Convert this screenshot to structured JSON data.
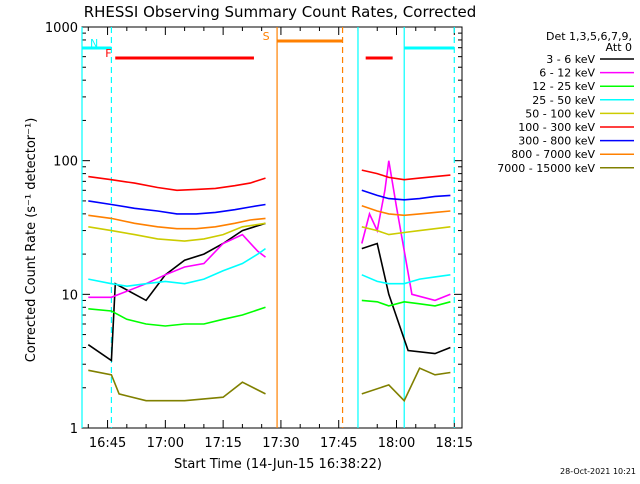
{
  "chart_data": {
    "type": "line",
    "title": "RHESSI Observing Summary Count Rates, Corrected",
    "xlabel": "Start Time (14-Jun-15 16:38:22)",
    "ylabel": "Corrected Count Rate (s⁻¹ detector⁻¹)",
    "y_scale": "log",
    "ylim": [
      1,
      1000
    ],
    "xlim": [
      "16:38:22",
      "18:17:00"
    ],
    "x_ticks": [
      "16:45",
      "17:00",
      "17:15",
      "17:30",
      "17:45",
      "18:00",
      "18:15"
    ],
    "y_ticks": [
      "1",
      "10",
      "100",
      "1000"
    ],
    "timestamp": "28-Oct-2021 10:21",
    "legend": {
      "placement": "right",
      "header": [
        "Det 1,3,5,6,7,9,",
        "Att 0"
      ]
    },
    "series": [
      {
        "name": "3 - 6 keV",
        "color": "#000000",
        "points": [
          [
            "16:40",
            4.2
          ],
          [
            "16:46",
            3.2
          ],
          [
            "16:47",
            12
          ],
          [
            "16:55",
            9
          ],
          [
            "17:00",
            14
          ],
          [
            "17:05",
            18
          ],
          [
            "17:10",
            20
          ],
          [
            "17:15",
            24
          ],
          [
            "17:20",
            30
          ],
          [
            "17:26",
            34
          ],
          [
            "17:51",
            22
          ],
          [
            "17:55",
            24
          ],
          [
            "17:58",
            10
          ],
          [
            "18:03",
            3.8
          ],
          [
            "18:10",
            3.6
          ],
          [
            "18:14",
            4
          ]
        ]
      },
      {
        "name": "6 - 12 keV",
        "color": "#ff00ff",
        "points": [
          [
            "16:40",
            9.5
          ],
          [
            "16:46",
            9.5
          ],
          [
            "16:48",
            10
          ],
          [
            "16:55",
            12
          ],
          [
            "17:00",
            14
          ],
          [
            "17:05",
            16
          ],
          [
            "17:10",
            17
          ],
          [
            "17:15",
            24
          ],
          [
            "17:20",
            28
          ],
          [
            "17:24",
            21
          ],
          [
            "17:26",
            19
          ],
          [
            "17:51",
            24
          ],
          [
            "17:53",
            40
          ],
          [
            "17:55",
            30
          ],
          [
            "17:57",
            60
          ],
          [
            "17:58",
            100
          ],
          [
            "18:00",
            45
          ],
          [
            "18:04",
            10
          ],
          [
            "18:10",
            9
          ],
          [
            "18:14",
            10
          ]
        ]
      },
      {
        "name": "12 - 25 keV",
        "color": "#00ff00",
        "points": [
          [
            "16:40",
            7.8
          ],
          [
            "16:46",
            7.5
          ],
          [
            "16:50",
            6.5
          ],
          [
            "16:55",
            6
          ],
          [
            "17:00",
            5.8
          ],
          [
            "17:05",
            6
          ],
          [
            "17:10",
            6
          ],
          [
            "17:15",
            6.5
          ],
          [
            "17:20",
            7
          ],
          [
            "17:26",
            8
          ],
          [
            "17:51",
            9
          ],
          [
            "17:55",
            8.8
          ],
          [
            "17:58",
            8.2
          ],
          [
            "18:02",
            8.8
          ],
          [
            "18:06",
            8.5
          ],
          [
            "18:10",
            8.2
          ],
          [
            "18:14",
            8.8
          ]
        ]
      },
      {
        "name": "25 - 50 keV",
        "color": "#00ffff",
        "points": [
          [
            "16:40",
            13
          ],
          [
            "16:46",
            12
          ],
          [
            "16:50",
            11.5
          ],
          [
            "16:55",
            12
          ],
          [
            "17:00",
            12.5
          ],
          [
            "17:05",
            12
          ],
          [
            "17:10",
            13
          ],
          [
            "17:15",
            15
          ],
          [
            "17:20",
            17
          ],
          [
            "17:24",
            20
          ],
          [
            "17:26",
            22
          ],
          [
            "17:51",
            14
          ],
          [
            "17:55",
            12.5
          ],
          [
            "17:58",
            12
          ],
          [
            "18:02",
            12
          ],
          [
            "18:06",
            13
          ],
          [
            "18:10",
            13.5
          ],
          [
            "18:14",
            14
          ]
        ]
      },
      {
        "name": "50 - 100 keV",
        "color": "#cccc00",
        "points": [
          [
            "16:40",
            32
          ],
          [
            "16:46",
            30
          ],
          [
            "16:52",
            28
          ],
          [
            "16:58",
            26
          ],
          [
            "17:05",
            25
          ],
          [
            "17:10",
            26
          ],
          [
            "17:15",
            28
          ],
          [
            "17:20",
            32
          ],
          [
            "17:26",
            34
          ],
          [
            "17:51",
            32
          ],
          [
            "17:55",
            30
          ],
          [
            "17:58",
            28
          ],
          [
            "18:02",
            29
          ],
          [
            "18:06",
            30
          ],
          [
            "18:10",
            31
          ],
          [
            "18:14",
            32
          ]
        ]
      },
      {
        "name": "100 - 300 keV",
        "color": "#ff0000",
        "points": [
          [
            "16:40",
            76
          ],
          [
            "16:46",
            72
          ],
          [
            "16:52",
            68
          ],
          [
            "16:58",
            63
          ],
          [
            "17:03",
            60
          ],
          [
            "17:08",
            61
          ],
          [
            "17:13",
            62
          ],
          [
            "17:18",
            65
          ],
          [
            "17:22",
            68
          ],
          [
            "17:26",
            74
          ],
          [
            "17:51",
            85
          ],
          [
            "17:55",
            80
          ],
          [
            "17:58",
            75
          ],
          [
            "18:02",
            72
          ],
          [
            "18:06",
            74
          ],
          [
            "18:10",
            76
          ],
          [
            "18:14",
            78
          ]
        ]
      },
      {
        "name": "300 - 800 keV",
        "color": "#0000ff",
        "points": [
          [
            "16:40",
            50
          ],
          [
            "16:46",
            47
          ],
          [
            "16:52",
            44
          ],
          [
            "16:58",
            42
          ],
          [
            "17:03",
            40
          ],
          [
            "17:08",
            40
          ],
          [
            "17:13",
            41
          ],
          [
            "17:18",
            43
          ],
          [
            "17:22",
            45
          ],
          [
            "17:26",
            47
          ],
          [
            "17:51",
            60
          ],
          [
            "17:55",
            55
          ],
          [
            "17:58",
            52
          ],
          [
            "18:02",
            51
          ],
          [
            "18:06",
            52
          ],
          [
            "18:10",
            54
          ],
          [
            "18:14",
            55
          ]
        ]
      },
      {
        "name": "800 - 7000 keV",
        "color": "#ff8000",
        "points": [
          [
            "16:40",
            39
          ],
          [
            "16:46",
            37
          ],
          [
            "16:52",
            34
          ],
          [
            "16:58",
            32
          ],
          [
            "17:03",
            31
          ],
          [
            "17:08",
            31
          ],
          [
            "17:13",
            32
          ],
          [
            "17:18",
            34
          ],
          [
            "17:22",
            36
          ],
          [
            "17:26",
            37
          ],
          [
            "17:51",
            46
          ],
          [
            "17:55",
            42
          ],
          [
            "17:58",
            40
          ],
          [
            "18:02",
            39
          ],
          [
            "18:06",
            40
          ],
          [
            "18:10",
            41
          ],
          [
            "18:14",
            42
          ]
        ]
      },
      {
        "name": "7000 - 15000 keV",
        "color": "#808000",
        "points": [
          [
            "16:40",
            2.7
          ],
          [
            "16:46",
            2.5
          ],
          [
            "16:48",
            1.8
          ],
          [
            "16:55",
            1.6
          ],
          [
            "17:05",
            1.6
          ],
          [
            "17:15",
            1.7
          ],
          [
            "17:20",
            2.2
          ],
          [
            "17:26",
            1.8
          ],
          [
            "17:51",
            1.8
          ],
          [
            "17:58",
            2.1
          ],
          [
            "18:02",
            1.6
          ],
          [
            "18:06",
            2.8
          ],
          [
            "18:10",
            2.5
          ],
          [
            "18:14",
            2.6
          ]
        ]
      }
    ],
    "bars": [
      {
        "label": "N",
        "color": "#00ffff",
        "segments": [
          [
            "16:38:22",
            "16:46"
          ],
          [
            "18:02",
            "18:15"
          ]
        ]
      },
      {
        "label": "F",
        "color": "#ff0000",
        "segments": [
          [
            "16:47",
            "17:23"
          ],
          [
            "17:52",
            "17:59"
          ]
        ]
      },
      {
        "label": "S",
        "color": "#ff8000",
        "segments": [
          [
            "17:29",
            "17:46"
          ]
        ]
      }
    ],
    "vertical_markers": [
      {
        "time": "16:38:22",
        "color": "#00ffff",
        "style": "solid"
      },
      {
        "time": "16:46",
        "color": "#00ffff",
        "style": "dashed"
      },
      {
        "time": "17:29",
        "color": "#ff8000",
        "style": "solid"
      },
      {
        "time": "17:46",
        "color": "#ff8000",
        "style": "dashed"
      },
      {
        "time": "17:50",
        "color": "#00ffff",
        "style": "solid"
      },
      {
        "time": "18:02",
        "color": "#00ffff",
        "style": "solid"
      },
      {
        "time": "18:15",
        "color": "#00ffff",
        "style": "dashed"
      }
    ]
  }
}
